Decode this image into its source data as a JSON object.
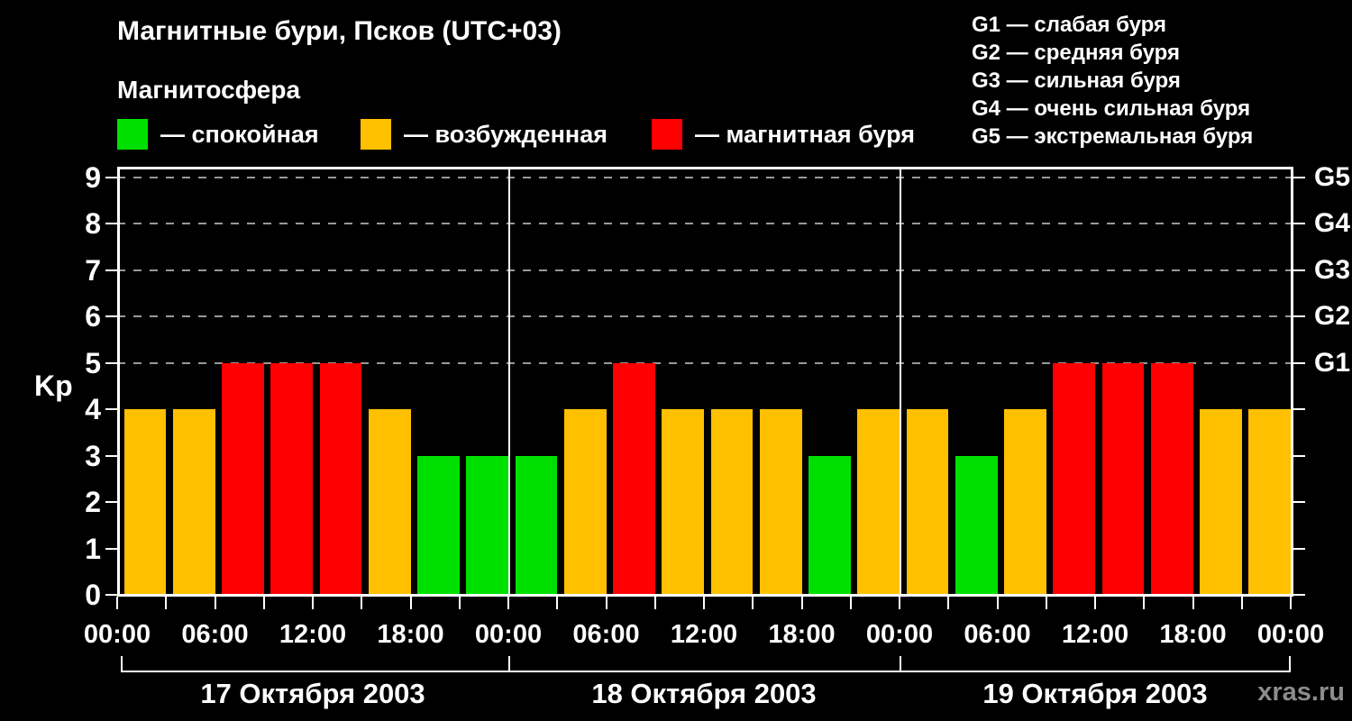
{
  "title": "Магнитные бури, Псков (UTC+03)",
  "subtitle": "Магнитосфера",
  "watermark": "xras.ru",
  "legend": {
    "items": [
      {
        "name": "quiet",
        "label": "— спокойная",
        "color": "#00E000"
      },
      {
        "name": "active",
        "label": "— возбужденная",
        "color": "#FFC000"
      },
      {
        "name": "storm",
        "label": "— магнитная буря",
        "color": "#FF0000"
      }
    ]
  },
  "g_legend": [
    {
      "code": "G1",
      "label": "слабая буря"
    },
    {
      "code": "G2",
      "label": "средняя буря"
    },
    {
      "code": "G3",
      "label": "сильная буря"
    },
    {
      "code": "G4",
      "label": "очень сильная буря"
    },
    {
      "code": "G5",
      "label": "экстремальная буря"
    }
  ],
  "chart_data": {
    "type": "bar",
    "ylabel": "Kp",
    "ylim": [
      0,
      9
    ],
    "yticks": [
      0,
      1,
      2,
      3,
      4,
      5,
      6,
      7,
      8,
      9
    ],
    "gridline_levels": [
      5,
      6,
      7,
      8,
      9
    ],
    "grid_style": "dashed-gray",
    "legend_position": "top",
    "right_axis_labels": [
      {
        "kp": 5,
        "label": "G1"
      },
      {
        "kp": 6,
        "label": "G2"
      },
      {
        "kp": 7,
        "label": "G3"
      },
      {
        "kp": 8,
        "label": "G4"
      },
      {
        "kp": 9,
        "label": "G5"
      }
    ],
    "x_tick_labels": [
      "00:00",
      "06:00",
      "12:00",
      "18:00",
      "00:00",
      "06:00",
      "12:00",
      "18:00",
      "00:00",
      "06:00",
      "12:00",
      "18:00",
      "00:00"
    ],
    "hours_per_bar": 3,
    "color_thresholds": {
      "quiet_max_kp": 3,
      "active_max_kp": 4
    },
    "colors": {
      "quiet": "#00E000",
      "active": "#FFC000",
      "storm": "#FF0000"
    },
    "series": [
      {
        "date": "17 Октября 2003",
        "values": [
          4,
          4,
          5,
          5,
          5,
          4,
          3,
          3
        ]
      },
      {
        "date": "18 Октября 2003",
        "values": [
          3,
          4,
          5,
          4,
          4,
          4,
          3,
          4
        ]
      },
      {
        "date": "19 Октября 2003",
        "values": [
          4,
          3,
          4,
          5,
          5,
          5,
          4,
          4
        ]
      }
    ]
  }
}
